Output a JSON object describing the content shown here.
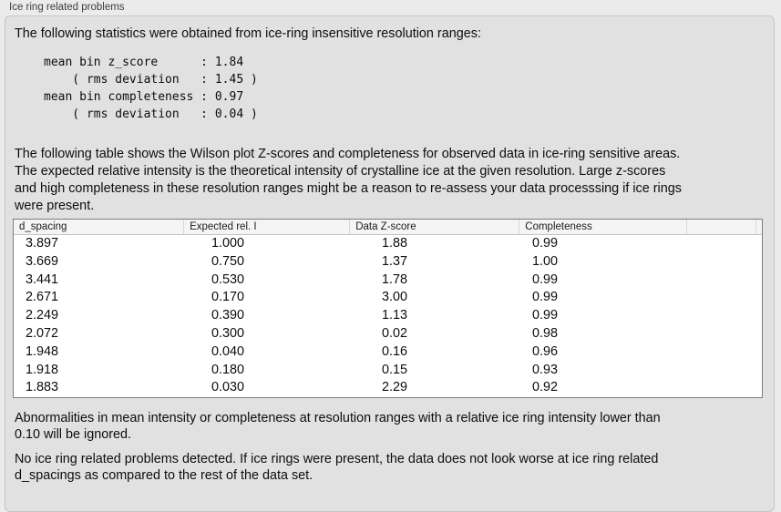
{
  "panel": {
    "title": "Ice ring related problems"
  },
  "intro": "The following statistics were obtained from ice-ring insensitive resolution ranges:",
  "stats_block": "mean bin z_score      : 1.84\n    ( rms deviation   : 1.45 )\nmean bin completeness : 0.97\n    ( rms deviation   : 0.04 )",
  "description": "The following table shows the Wilson plot Z-scores and completeness for observed data in ice-ring sensitive areas.\nThe expected relative intensity is the theoretical intensity of crystalline ice at the given resolution. Large z-scores\nand high completeness in these resolution ranges might be a reason to re-assess your data processsing if ice rings\nwere present.",
  "table": {
    "columns": {
      "d_spacing": "d_spacing",
      "expected_rel_i": "Expected rel. I",
      "data_z_score": "Data Z-score",
      "completeness": "Completeness"
    },
    "rows": [
      [
        "3.897",
        "1.000",
        "1.88",
        "0.99"
      ],
      [
        "3.669",
        "0.750",
        "1.37",
        "1.00"
      ],
      [
        "3.441",
        "0.530",
        "1.78",
        "0.99"
      ],
      [
        "2.671",
        "0.170",
        "3.00",
        "0.99"
      ],
      [
        "2.249",
        "0.390",
        "1.13",
        "0.99"
      ],
      [
        "2.072",
        "0.300",
        "0.02",
        "0.98"
      ],
      [
        "1.948",
        "0.040",
        "0.16",
        "0.96"
      ],
      [
        "1.918",
        "0.180",
        "0.15",
        "0.93"
      ],
      [
        "1.883",
        "0.030",
        "2.29",
        "0.92"
      ]
    ]
  },
  "note_ignore": "Abnormalities in mean intensity or completeness at resolution ranges with a relative ice ring intensity lower than\n0.10 will be ignored.",
  "conclusion": "No ice ring related problems detected. If ice rings were present, the data does not look worse at ice ring related\nd_spacings as compared to the rest of the data set.",
  "colors": {
    "outer_background": "#ebebeb",
    "panel_background": "#e1e1e1",
    "table_border": "#7d7d7d",
    "table_header_background": "#f5f5f5",
    "text": "#0d0d0d"
  }
}
